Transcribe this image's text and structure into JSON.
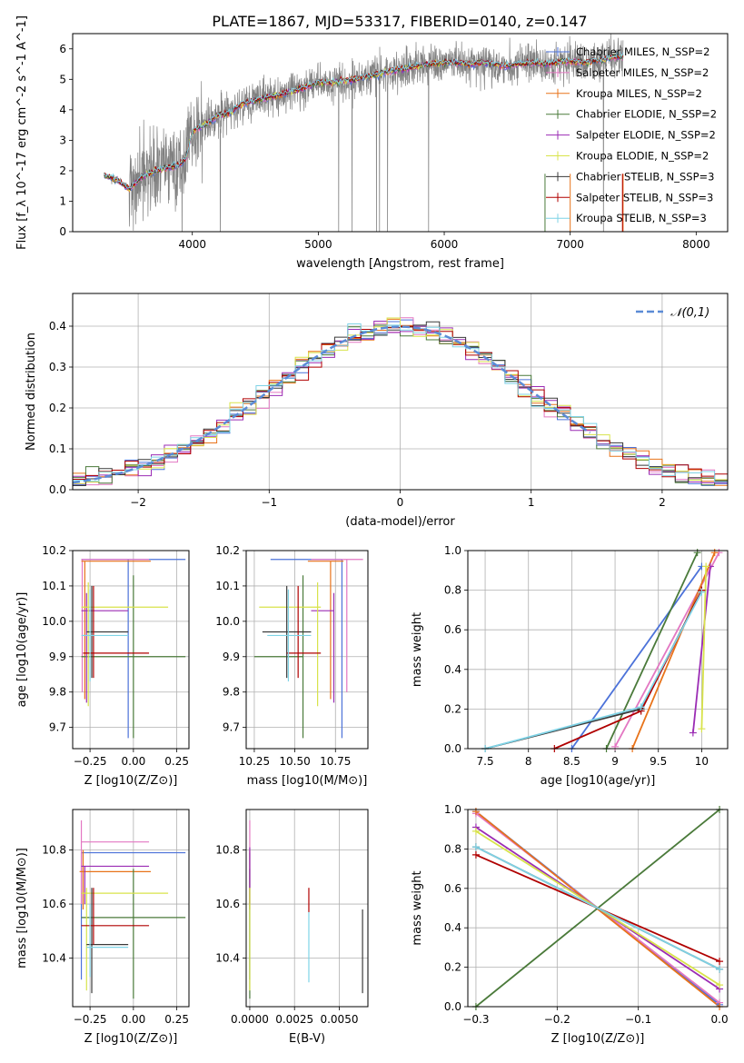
{
  "figure_title": "PLATE=1867, MJD=53317, FIBERID=0140, z=0.147",
  "colors": {
    "data_spectrum": "#808080",
    "models": [
      "#4c72d9",
      "#e377c2",
      "#e8731a",
      "#4a7a3a",
      "#9b2cb4",
      "#d8e34a",
      "#3a3a3a",
      "#b00000",
      "#7fd3e6"
    ],
    "gaussian": "#5b8bd6"
  },
  "chart_data": [
    {
      "id": "spectrum",
      "type": "line",
      "xlabel": "wavelength [Angstrom, rest frame]",
      "ylabel": "Flux [f_λ 10^-17 erg cm^-2 s^-1 A^-1]",
      "xlim": [
        3050,
        8250
      ],
      "ylim": [
        0,
        6.5
      ],
      "xticks": [
        4000,
        5000,
        6000,
        7000,
        8000
      ],
      "yticks": [
        0,
        1,
        2,
        3,
        4,
        5,
        6
      ],
      "grid": false,
      "legend_position": "top-right",
      "legend": [
        {
          "name": "Chabrier MILES, N_SSP=2",
          "color_index": 0
        },
        {
          "name": "Salpeter MILES, N_SSP=2",
          "color_index": 1
        },
        {
          "name": "Kroupa MILES, N_SSP=2",
          "color_index": 2
        },
        {
          "name": "Chabrier ELODIE, N_SSP=2",
          "color_index": 3
        },
        {
          "name": "Salpeter ELODIE, N_SSP=2",
          "color_index": 4
        },
        {
          "name": "Kroupa ELODIE, N_SSP=2",
          "color_index": 5
        },
        {
          "name": "Chabrier STELIB, N_SSP=3",
          "color_index": 6
        },
        {
          "name": "Salpeter STELIB, N_SSP=3",
          "color_index": 7
        },
        {
          "name": "Kroupa STELIB, N_SSP=3",
          "color_index": 8
        }
      ],
      "model_curve": [
        [
          3300,
          1.85
        ],
        [
          3400,
          1.7
        ],
        [
          3500,
          1.4
        ],
        [
          3600,
          1.8
        ],
        [
          3700,
          2.0
        ],
        [
          3800,
          2.1
        ],
        [
          3900,
          2.2
        ],
        [
          3950,
          2.4
        ],
        [
          4000,
          3.3
        ],
        [
          4100,
          3.5
        ],
        [
          4200,
          3.8
        ],
        [
          4300,
          3.9
        ],
        [
          4400,
          4.2
        ],
        [
          4500,
          4.3
        ],
        [
          4600,
          4.4
        ],
        [
          4700,
          4.5
        ],
        [
          4800,
          4.6
        ],
        [
          4900,
          4.75
        ],
        [
          5000,
          4.9
        ],
        [
          5100,
          4.9
        ],
        [
          5200,
          4.95
        ],
        [
          5300,
          5.0
        ],
        [
          5400,
          5.1
        ],
        [
          5500,
          5.2
        ],
        [
          5600,
          5.3
        ],
        [
          5700,
          5.35
        ],
        [
          5800,
          5.45
        ],
        [
          5900,
          5.5
        ],
        [
          6000,
          5.55
        ],
        [
          6100,
          5.55
        ],
        [
          6200,
          5.5
        ],
        [
          6300,
          5.55
        ],
        [
          6400,
          5.5
        ],
        [
          6500,
          5.45
        ],
        [
          6600,
          5.5
        ],
        [
          6700,
          5.55
        ],
        [
          6800,
          5.5
        ],
        [
          6900,
          5.55
        ],
        [
          7000,
          5.6
        ],
        [
          7100,
          5.55
        ],
        [
          7200,
          5.6
        ],
        [
          7300,
          5.7
        ],
        [
          7400,
          5.75
        ]
      ],
      "data_range": [
        3300,
        7420
      ],
      "data_noise_start": 3500
    },
    {
      "id": "residuals",
      "type": "step",
      "xlabel": "(data-model)/error",
      "ylabel": "Normed distribution",
      "xlim": [
        -2.5,
        2.5
      ],
      "ylim": [
        0,
        0.48
      ],
      "xticks": [
        -2,
        -1,
        0,
        1,
        2
      ],
      "yticks": [
        0.0,
        0.1,
        0.2,
        0.3,
        0.4
      ],
      "grid": true,
      "legend_position": "top-right",
      "legend": [
        {
          "name": "𝒩(0,1)",
          "style": "dashed"
        }
      ]
    },
    {
      "id": "age_vs_Z",
      "type": "errorbar",
      "xlabel": "Z [log10(Z/Z⊙)]",
      "ylabel": "age  [log10(age/yr)]",
      "xlim": [
        -0.35,
        0.32
      ],
      "ylim": [
        9.64,
        10.2
      ],
      "xticks": [
        -0.25,
        0.0,
        0.25
      ],
      "xticklabels": [
        "−0.25",
        "0.00",
        "0.25"
      ],
      "yticks": [
        9.7,
        9.8,
        9.9,
        10.0,
        10.1,
        10.2
      ],
      "grid": true,
      "points": [
        {
          "c": 0,
          "x": -0.03,
          "xlo": -0.3,
          "xhi": 0.3,
          "y": 10.175,
          "ylo": 9.67,
          "yhi": 10.175
        },
        {
          "c": 1,
          "x": -0.295,
          "xlo": -0.3,
          "xhi": 0.09,
          "y": 10.175,
          "ylo": 9.8,
          "yhi": 10.175
        },
        {
          "c": 2,
          "x": -0.28,
          "xlo": -0.3,
          "xhi": 0.1,
          "y": 10.17,
          "ylo": 9.78,
          "yhi": 10.17
        },
        {
          "c": 3,
          "x": 0.0,
          "xlo": -0.3,
          "xhi": 0.3,
          "y": 9.9,
          "ylo": 9.67,
          "yhi": 10.13
        },
        {
          "c": 4,
          "x": -0.27,
          "xlo": -0.3,
          "xhi": -0.03,
          "y": 10.03,
          "ylo": 9.77,
          "yhi": 10.08
        },
        {
          "c": 5,
          "x": -0.26,
          "xlo": -0.3,
          "xhi": 0.2,
          "y": 10.04,
          "ylo": 9.76,
          "yhi": 10.11
        },
        {
          "c": 6,
          "x": -0.24,
          "xlo": -0.27,
          "xhi": -0.03,
          "y": 9.97,
          "ylo": 9.84,
          "yhi": 10.1
        },
        {
          "c": 7,
          "x": -0.23,
          "xlo": -0.29,
          "xhi": 0.09,
          "y": 9.91,
          "ylo": 9.84,
          "yhi": 10.1
        },
        {
          "c": 8,
          "x": -0.25,
          "xlo": -0.3,
          "xhi": -0.03,
          "y": 9.96,
          "ylo": 9.83,
          "yhi": 10.09
        }
      ]
    },
    {
      "id": "age_vs_mass",
      "type": "errorbar",
      "xlabel": "mass [log10(M/M⊙)]",
      "ylabel": "",
      "xlim": [
        10.2,
        10.95
      ],
      "ylim": [
        9.64,
        10.2
      ],
      "xticks": [
        10.25,
        10.5,
        10.75
      ],
      "xticklabels": [
        "10.25",
        "10.50",
        "10.75"
      ],
      "yticks": [
        9.7,
        9.8,
        9.9,
        10.0,
        10.1,
        10.2
      ],
      "grid": true,
      "points": [
        {
          "c": 0,
          "x": 10.79,
          "xlo": 10.35,
          "xhi": 10.79,
          "y": 10.175,
          "ylo": 9.67,
          "yhi": 10.175
        },
        {
          "c": 1,
          "x": 10.82,
          "xlo": 10.6,
          "xhi": 10.92,
          "y": 10.175,
          "ylo": 9.8,
          "yhi": 10.175
        },
        {
          "c": 2,
          "x": 10.72,
          "xlo": 10.58,
          "xhi": 10.8,
          "y": 10.17,
          "ylo": 9.78,
          "yhi": 10.17
        },
        {
          "c": 3,
          "x": 10.55,
          "xlo": 10.25,
          "xhi": 10.55,
          "y": 9.9,
          "ylo": 9.67,
          "yhi": 10.13
        },
        {
          "c": 4,
          "x": 10.74,
          "xlo": 10.6,
          "xhi": 10.74,
          "y": 10.03,
          "ylo": 9.77,
          "yhi": 10.08
        },
        {
          "c": 5,
          "x": 10.64,
          "xlo": 10.28,
          "xhi": 10.66,
          "y": 10.04,
          "ylo": 9.76,
          "yhi": 10.11
        },
        {
          "c": 6,
          "x": 10.45,
          "xlo": 10.3,
          "xhi": 10.6,
          "y": 9.97,
          "ylo": 9.84,
          "yhi": 10.1
        },
        {
          "c": 7,
          "x": 10.52,
          "xlo": 10.45,
          "xhi": 10.66,
          "y": 9.91,
          "ylo": 9.84,
          "yhi": 10.1
        },
        {
          "c": 8,
          "x": 10.46,
          "xlo": 10.33,
          "xhi": 10.6,
          "y": 9.96,
          "ylo": 9.83,
          "yhi": 10.09
        }
      ]
    },
    {
      "id": "weight_vs_age",
      "type": "line",
      "xlabel": "age  [log10(age/yr)]",
      "ylabel": "mass weight",
      "xlim": [
        7.3,
        10.3
      ],
      "ylim": [
        0,
        1
      ],
      "xticks": [
        7.5,
        8.0,
        8.5,
        9.0,
        9.5,
        10.0
      ],
      "yticks": [
        0.0,
        0.2,
        0.4,
        0.6,
        0.8,
        1.0
      ],
      "grid": true,
      "series": [
        {
          "c": 0,
          "x": [
            8.5,
            10.0
          ],
          "y": [
            0.0,
            0.92
          ]
        },
        {
          "c": 1,
          "x": [
            9.0,
            10.2
          ],
          "y": [
            0.01,
            0.99
          ]
        },
        {
          "c": 2,
          "x": [
            9.2,
            10.15
          ],
          "y": [
            0.0,
            0.99
          ]
        },
        {
          "c": 3,
          "x": [
            8.9,
            9.95
          ],
          "y": [
            0.0,
            0.99
          ]
        },
        {
          "c": 4,
          "x": [
            9.9,
            10.1
          ],
          "y": [
            0.08,
            0.92
          ]
        },
        {
          "c": 5,
          "x": [
            10.0,
            10.05
          ],
          "y": [
            0.1,
            0.92
          ]
        },
        {
          "c": 6,
          "x": [
            7.5,
            9.3,
            10.0
          ],
          "y": [
            0.0,
            0.2,
            0.8
          ]
        },
        {
          "c": 7,
          "x": [
            8.3,
            9.3,
            10.0
          ],
          "y": [
            0.0,
            0.19,
            0.8
          ]
        },
        {
          "c": 8,
          "x": [
            7.5,
            9.3,
            10.0
          ],
          "y": [
            0.0,
            0.21,
            0.79
          ]
        }
      ]
    },
    {
      "id": "mass_vs_Z",
      "type": "errorbar",
      "xlabel": "Z [log10(Z/Z⊙)]",
      "ylabel": "mass [log10(M/M⊙)]",
      "xlim": [
        -0.35,
        0.32
      ],
      "ylim": [
        10.22,
        10.95
      ],
      "xticks": [
        -0.25,
        0.0,
        0.25
      ],
      "xticklabels": [
        "−0.25",
        "0.00",
        "0.25"
      ],
      "yticks": [
        10.4,
        10.6,
        10.8
      ],
      "grid": true,
      "points": [
        {
          "c": 0,
          "x": -0.3,
          "xlo": -0.3,
          "xhi": 0.3,
          "y": 10.79,
          "ylo": 10.32,
          "yhi": 10.79
        },
        {
          "c": 1,
          "x": -0.3,
          "xlo": -0.3,
          "xhi": 0.09,
          "y": 10.83,
          "ylo": 10.6,
          "yhi": 10.91
        },
        {
          "c": 2,
          "x": -0.29,
          "xlo": -0.31,
          "xhi": 0.1,
          "y": 10.72,
          "ylo": 10.58,
          "yhi": 10.8
        },
        {
          "c": 3,
          "x": 0.0,
          "xlo": -0.3,
          "xhi": 0.3,
          "y": 10.55,
          "ylo": 10.25,
          "yhi": 10.73
        },
        {
          "c": 4,
          "x": -0.28,
          "xlo": -0.3,
          "xhi": 0.09,
          "y": 10.74,
          "ylo": 10.6,
          "yhi": 10.74
        },
        {
          "c": 5,
          "x": -0.27,
          "xlo": -0.3,
          "xhi": 0.2,
          "y": 10.64,
          "ylo": 10.28,
          "yhi": 10.66
        },
        {
          "c": 6,
          "x": -0.24,
          "xlo": -0.27,
          "xhi": -0.03,
          "y": 10.45,
          "ylo": 10.27,
          "yhi": 10.66
        },
        {
          "c": 7,
          "x": -0.23,
          "xlo": -0.3,
          "xhi": 0.09,
          "y": 10.52,
          "ylo": 10.45,
          "yhi": 10.66
        },
        {
          "c": 8,
          "x": -0.25,
          "xlo": -0.27,
          "xhi": -0.03,
          "y": 10.44,
          "ylo": 10.33,
          "yhi": 10.6
        }
      ]
    },
    {
      "id": "mass_vs_EBV",
      "type": "errorbar",
      "xlabel": "E(B-V)",
      "ylabel": "",
      "xlim": [
        -0.0002,
        0.0066
      ],
      "ylim": [
        10.22,
        10.95
      ],
      "xticks": [
        0.0,
        0.0025,
        0.005
      ],
      "xticklabels": [
        "0.0000",
        "0.0025",
        "0.0050"
      ],
      "yticks": [
        10.4,
        10.6,
        10.8
      ],
      "grid": true,
      "points": [
        {
          "c": 0,
          "x": 0.0,
          "y": 10.79,
          "ylo": 10.32,
          "yhi": 10.79
        },
        {
          "c": 1,
          "x": 0.0,
          "y": 10.83,
          "ylo": 10.6,
          "yhi": 10.91
        },
        {
          "c": 2,
          "x": 0.0,
          "y": 10.72,
          "ylo": 10.58,
          "yhi": 10.8
        },
        {
          "c": 3,
          "x": 0.0,
          "y": 10.55,
          "ylo": 10.25,
          "yhi": 10.73
        },
        {
          "c": 4,
          "x": 0.0,
          "y": 10.74,
          "ylo": 10.6,
          "yhi": 10.81
        },
        {
          "c": 5,
          "x": 0.0,
          "y": 10.64,
          "ylo": 10.28,
          "yhi": 10.66
        },
        {
          "c": 6,
          "x": 0.0063,
          "y": 10.45,
          "ylo": 10.27,
          "yhi": 10.58
        },
        {
          "c": 7,
          "x": 0.0033,
          "y": 10.57,
          "ylo": 10.57,
          "yhi": 10.66
        },
        {
          "c": 8,
          "x": 0.0033,
          "y": 10.44,
          "ylo": 10.31,
          "yhi": 10.57
        }
      ]
    },
    {
      "id": "weight_vs_Z",
      "type": "line",
      "xlabel": "Z [log10(Z/Z⊙)]",
      "ylabel": "mass weight",
      "xlim": [
        -0.31,
        0.01
      ],
      "ylim": [
        0,
        1
      ],
      "xticks": [
        -0.3,
        -0.2,
        -0.1,
        0.0
      ],
      "xticklabels": [
        "−0.3",
        "−0.2",
        "−0.1",
        "0.0"
      ],
      "yticks": [
        0.0,
        0.2,
        0.4,
        0.6,
        0.8,
        1.0
      ],
      "grid": true,
      "series": [
        {
          "c": 0,
          "x": [
            -0.3,
            0.0
          ],
          "y": [
            0.99,
            0.01
          ]
        },
        {
          "c": 1,
          "x": [
            -0.3,
            0.0
          ],
          "y": [
            0.98,
            0.02
          ]
        },
        {
          "c": 2,
          "x": [
            -0.3,
            0.0
          ],
          "y": [
            0.99,
            0.0
          ]
        },
        {
          "c": 3,
          "x": [
            -0.3,
            0.0
          ],
          "y": [
            0.0,
            1.0
          ]
        },
        {
          "c": 4,
          "x": [
            -0.3,
            0.0
          ],
          "y": [
            0.91,
            0.09
          ]
        },
        {
          "c": 5,
          "x": [
            -0.3,
            0.0
          ],
          "y": [
            0.89,
            0.11
          ]
        },
        {
          "c": 6,
          "x": [
            -0.3,
            0.0
          ],
          "y": [
            0.81,
            0.19
          ]
        },
        {
          "c": 7,
          "x": [
            -0.3,
            0.0
          ],
          "y": [
            0.77,
            0.23
          ]
        },
        {
          "c": 8,
          "x": [
            -0.3,
            0.0
          ],
          "y": [
            0.81,
            0.19
          ]
        }
      ]
    }
  ]
}
